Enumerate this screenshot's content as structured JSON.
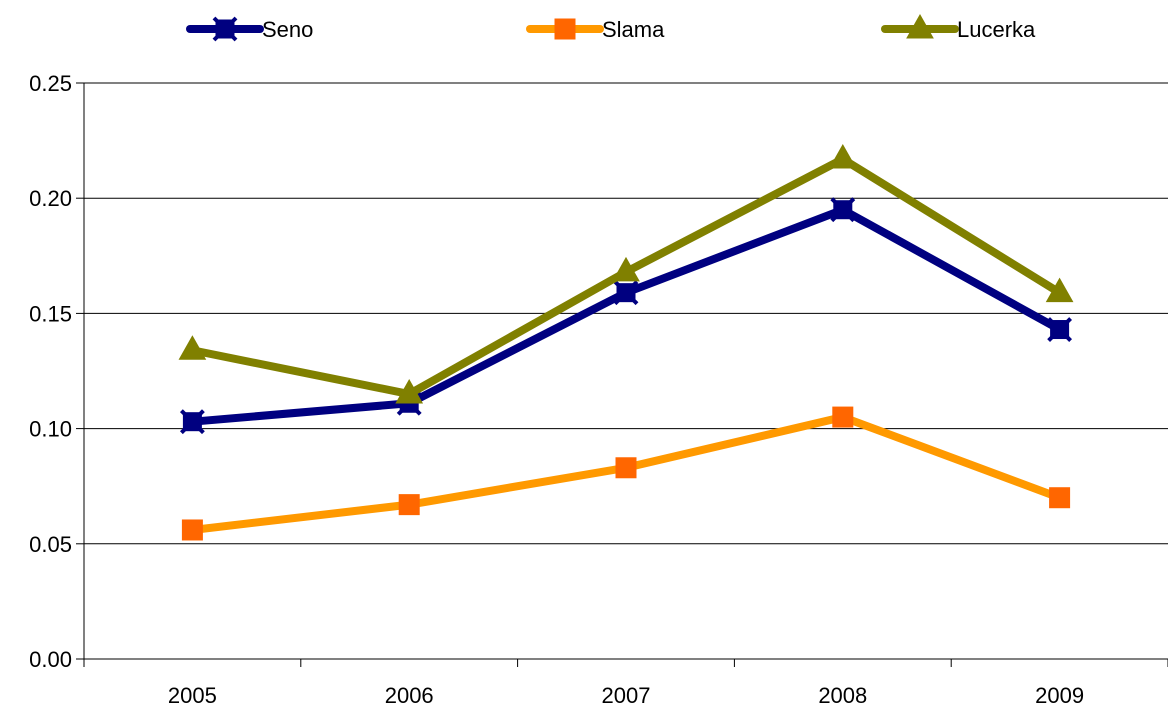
{
  "chart_data": {
    "type": "line",
    "categories": [
      "2005",
      "2006",
      "2007",
      "2008",
      "2009"
    ],
    "series": [
      {
        "name": "Seno",
        "values": [
          0.103,
          0.111,
          0.159,
          0.195,
          0.143
        ],
        "color": "#000080",
        "marker": "x-square"
      },
      {
        "name": "Slama",
        "values": [
          0.056,
          0.067,
          0.083,
          0.105,
          0.07
        ],
        "color": "#FF9900",
        "marker": "square",
        "marker_color": "#FF6600"
      },
      {
        "name": "Lucerka",
        "values": [
          0.134,
          0.115,
          0.168,
          0.217,
          0.159
        ],
        "color": "#808000",
        "marker": "triangle"
      }
    ],
    "yticks": [
      "0.00",
      "0.05",
      "0.10",
      "0.15",
      "0.20",
      "0.25"
    ],
    "ylim": [
      0,
      0.25
    ],
    "grid": true,
    "legend_position": "top"
  }
}
